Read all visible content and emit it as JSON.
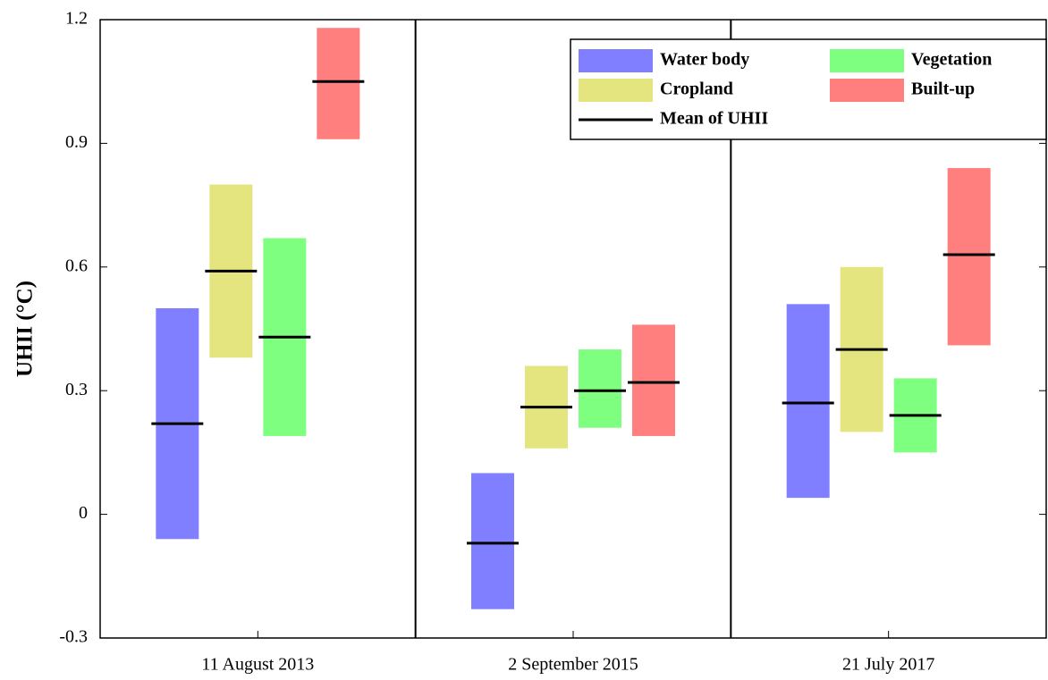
{
  "chart_data": {
    "type": "range-bar",
    "y_label": "UHII (°C)",
    "categories": [
      "11 August 2013",
      "2 September 2015",
      "21 July 2017"
    ],
    "series": [
      {
        "name": "Water body",
        "color": "#7f7fff",
        "low": [
          -0.06,
          -0.23,
          0.04
        ],
        "high": [
          0.5,
          0.1,
          0.51
        ],
        "mean": [
          0.22,
          -0.07,
          0.27
        ]
      },
      {
        "name": "Cropland",
        "color": "#e5e57f",
        "low": [
          0.38,
          0.16,
          0.2
        ],
        "high": [
          0.8,
          0.36,
          0.6
        ],
        "mean": [
          0.59,
          0.26,
          0.4
        ]
      },
      {
        "name": "Vegetation",
        "color": "#7fff7f",
        "low": [
          0.19,
          0.21,
          0.15
        ],
        "high": [
          0.67,
          0.4,
          0.33
        ],
        "mean": [
          0.43,
          0.3,
          0.24
        ]
      },
      {
        "name": "Built-up",
        "color": "#ff7f7f",
        "low": [
          0.91,
          0.19,
          0.41
        ],
        "high": [
          1.18,
          0.46,
          0.84
        ],
        "mean": [
          1.05,
          0.32,
          0.63
        ]
      }
    ],
    "mean_label": "Mean of UHII",
    "mean_color": "#000000",
    "ylim": [
      -0.3,
      1.2
    ],
    "yticks": [
      -0.3,
      0,
      0.3,
      0.6,
      0.9,
      1.2
    ],
    "legend": "upper-right"
  }
}
